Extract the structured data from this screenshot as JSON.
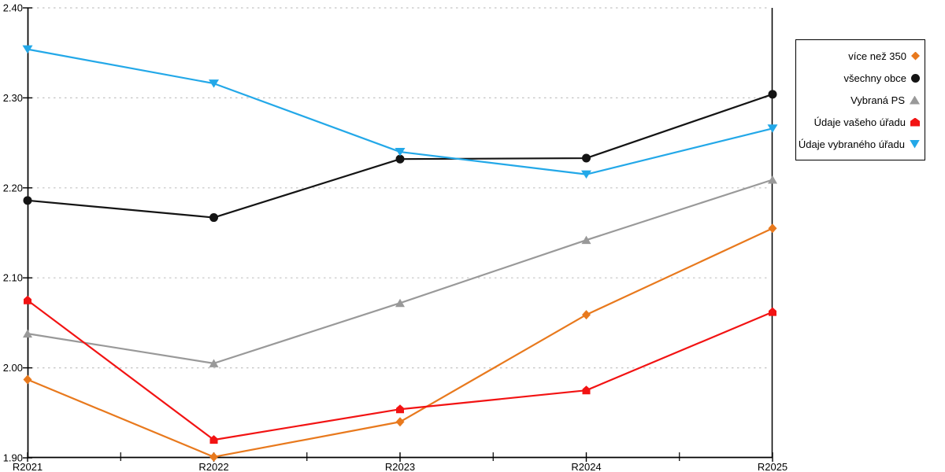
{
  "chart_data": {
    "type": "line",
    "title": "",
    "xlabel": "",
    "ylabel": "",
    "categories": [
      "R2021",
      "R2022",
      "R2023",
      "R2024",
      "R2025"
    ],
    "series": [
      {
        "name": "více než 350",
        "marker": "diamond",
        "color": "#E8791D",
        "values": [
          1.987,
          1.901,
          1.94,
          2.059,
          2.155
        ]
      },
      {
        "name": "všechny obce",
        "marker": "circle",
        "color": "#141414",
        "values": [
          2.186,
          2.167,
          2.232,
          2.233,
          2.304
        ]
      },
      {
        "name": "Vybraná PS",
        "marker": "triangle-up",
        "color": "#999999",
        "values": [
          2.038,
          2.005,
          2.072,
          2.142,
          2.209
        ]
      },
      {
        "name": "Údaje vašeho úřadu",
        "marker": "pentagon",
        "color": "#F21313",
        "values": [
          2.075,
          1.92,
          1.954,
          1.975,
          2.062
        ]
      },
      {
        "name": "Údaje vybraného úřadu",
        "marker": "triangle-down",
        "color": "#23A8E8",
        "values": [
          2.354,
          2.316,
          2.24,
          2.215,
          2.266
        ]
      }
    ],
    "ylim": [
      1.9,
      2.4
    ],
    "y_ticks": [
      1.9,
      2.0,
      2.1,
      2.2,
      2.3,
      2.4
    ],
    "y_tick_labels": [
      "1.90",
      "2.00",
      "2.10",
      "2.20",
      "2.30",
      "2.40"
    ],
    "grid": "horizontal-dotted",
    "grid_color": "#c3c3c3",
    "axis_color": "#000000",
    "legend_position": "right"
  }
}
